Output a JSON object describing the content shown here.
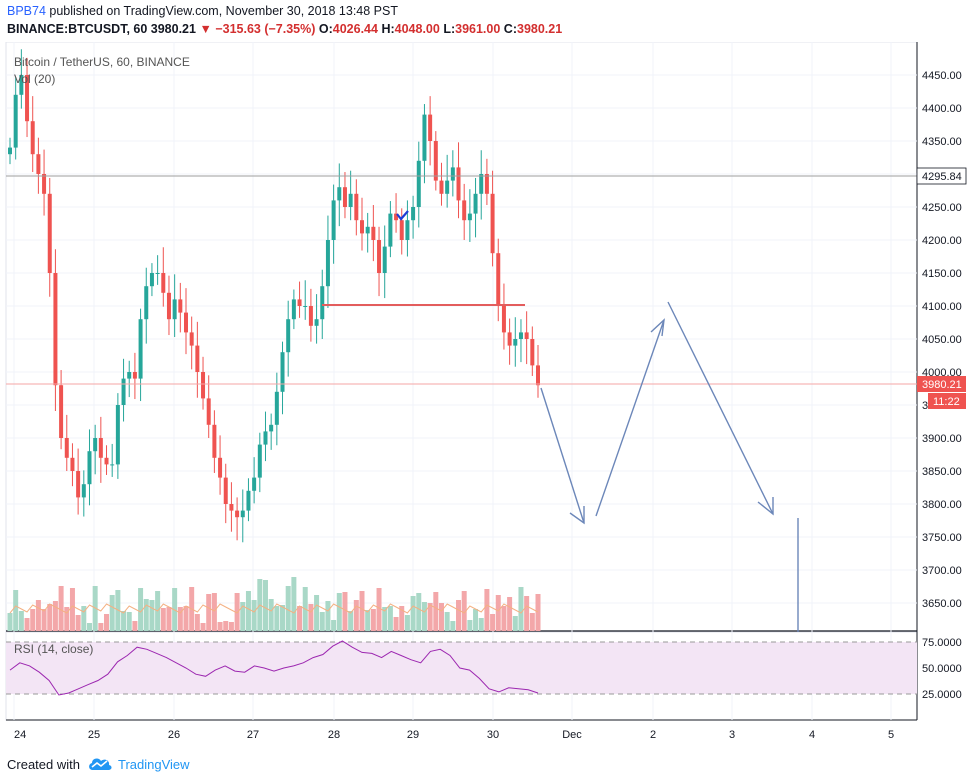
{
  "header": {
    "author": "BPB74",
    "published": " published on TradingView.com, November 30, 2018 13:48 PST",
    "symbol": "BINANCE:BTCUSDT, 60",
    "last": "3980.21",
    "change": "−315.63 (−7.35%)",
    "o_label": "O:",
    "o": "4026.44",
    "h_label": "H:",
    "h": "4048.00",
    "l_label": "L:",
    "l": "3961.00",
    "c_label": "C:",
    "c": "3980.21"
  },
  "pane": {
    "instrument": "Bitcoin / TetherUS, 60, BINANCE",
    "vol_label": "Vol (20)",
    "rsi_label": "RSI (14, close)"
  },
  "price_badges": {
    "ref": "4295.84",
    "last": "3980.21",
    "timer": "11:22"
  },
  "footer": {
    "created_with": "Created with",
    "brand": "TradingView"
  },
  "colors": {
    "up": "#26a69a",
    "down": "#ef5350",
    "rsi_line": "#9c27b0",
    "rsi_band": "#f3e5f5",
    "drawing": "#6c87b9",
    "level_line": "#e35d5d",
    "ref_line": "#9e9e9e",
    "author": "#2962ff"
  },
  "chart_data": [
    {
      "type": "candlestick",
      "title": "Bitcoin / TetherUS, 60, BINANCE",
      "y_ticks": [
        "3650.00",
        "3700.00",
        "3750.00",
        "3800.00",
        "3850.00",
        "3900.00",
        "3950.00",
        "4000.00",
        "4050.00",
        "4100.00",
        "4150.00",
        "4200.00",
        "4250.00",
        "4300.00",
        "4350.00",
        "4400.00",
        "4450.00"
      ],
      "ylim": [
        3620,
        4480
      ],
      "x_ticks": [
        "24",
        "25",
        "26",
        "27",
        "28",
        "29",
        "30",
        "Dec",
        "2",
        "3",
        "4",
        "5"
      ],
      "grid": true,
      "series": [
        {
          "values": [
            4340,
            4420,
            4450,
            4380,
            4330,
            4300,
            4270,
            4150,
            3980,
            3900,
            3870,
            3850,
            3810,
            3830,
            3880,
            3900,
            3870,
            3860,
            3860,
            3950,
            3990,
            4000,
            3990,
            4080,
            4130,
            4150,
            4150,
            4120,
            4080,
            4110,
            4090,
            4060,
            4040,
            4000,
            3960,
            3920,
            3870,
            3840,
            3800,
            3790,
            3780,
            3790,
            3820,
            3840,
            3890,
            3910,
            3920,
            3970,
            4030,
            4080,
            4110,
            4100,
            4100,
            4070,
            4080,
            4130,
            4200,
            4260,
            4280,
            4250,
            4270,
            4230,
            4210,
            4220,
            4200,
            4150,
            4190,
            4240,
            4230,
            4200,
            4230,
            4250,
            4320,
            4390,
            4350,
            4290,
            4270,
            4290,
            4310,
            4260,
            4230,
            4240,
            4270,
            4300,
            4270,
            4180,
            4100,
            4060,
            4040,
            4050,
            4060,
            4050,
            4010,
            3980
          ]
        }
      ]
    },
    {
      "type": "bar",
      "title": "Vol (20)",
      "note": "volume bars under the price pane"
    },
    {
      "type": "line",
      "title": "RSI (14, close)",
      "y_ticks": [
        "25.0000",
        "50.0000",
        "75.0000"
      ],
      "ylim": [
        18,
        80
      ],
      "bands": [
        30,
        70
      ],
      "values": [
        48,
        55,
        52,
        46,
        38,
        24,
        26,
        30,
        34,
        38,
        44,
        56,
        62,
        70,
        68,
        64,
        60,
        55,
        50,
        44,
        42,
        48,
        52,
        47,
        46,
        52,
        50,
        47,
        50,
        52,
        55,
        60,
        63,
        71,
        76,
        70,
        65,
        64,
        60,
        66,
        62,
        58,
        55,
        66,
        68,
        62,
        50,
        48,
        40,
        30,
        27,
        31,
        30,
        29,
        26
      ]
    }
  ]
}
